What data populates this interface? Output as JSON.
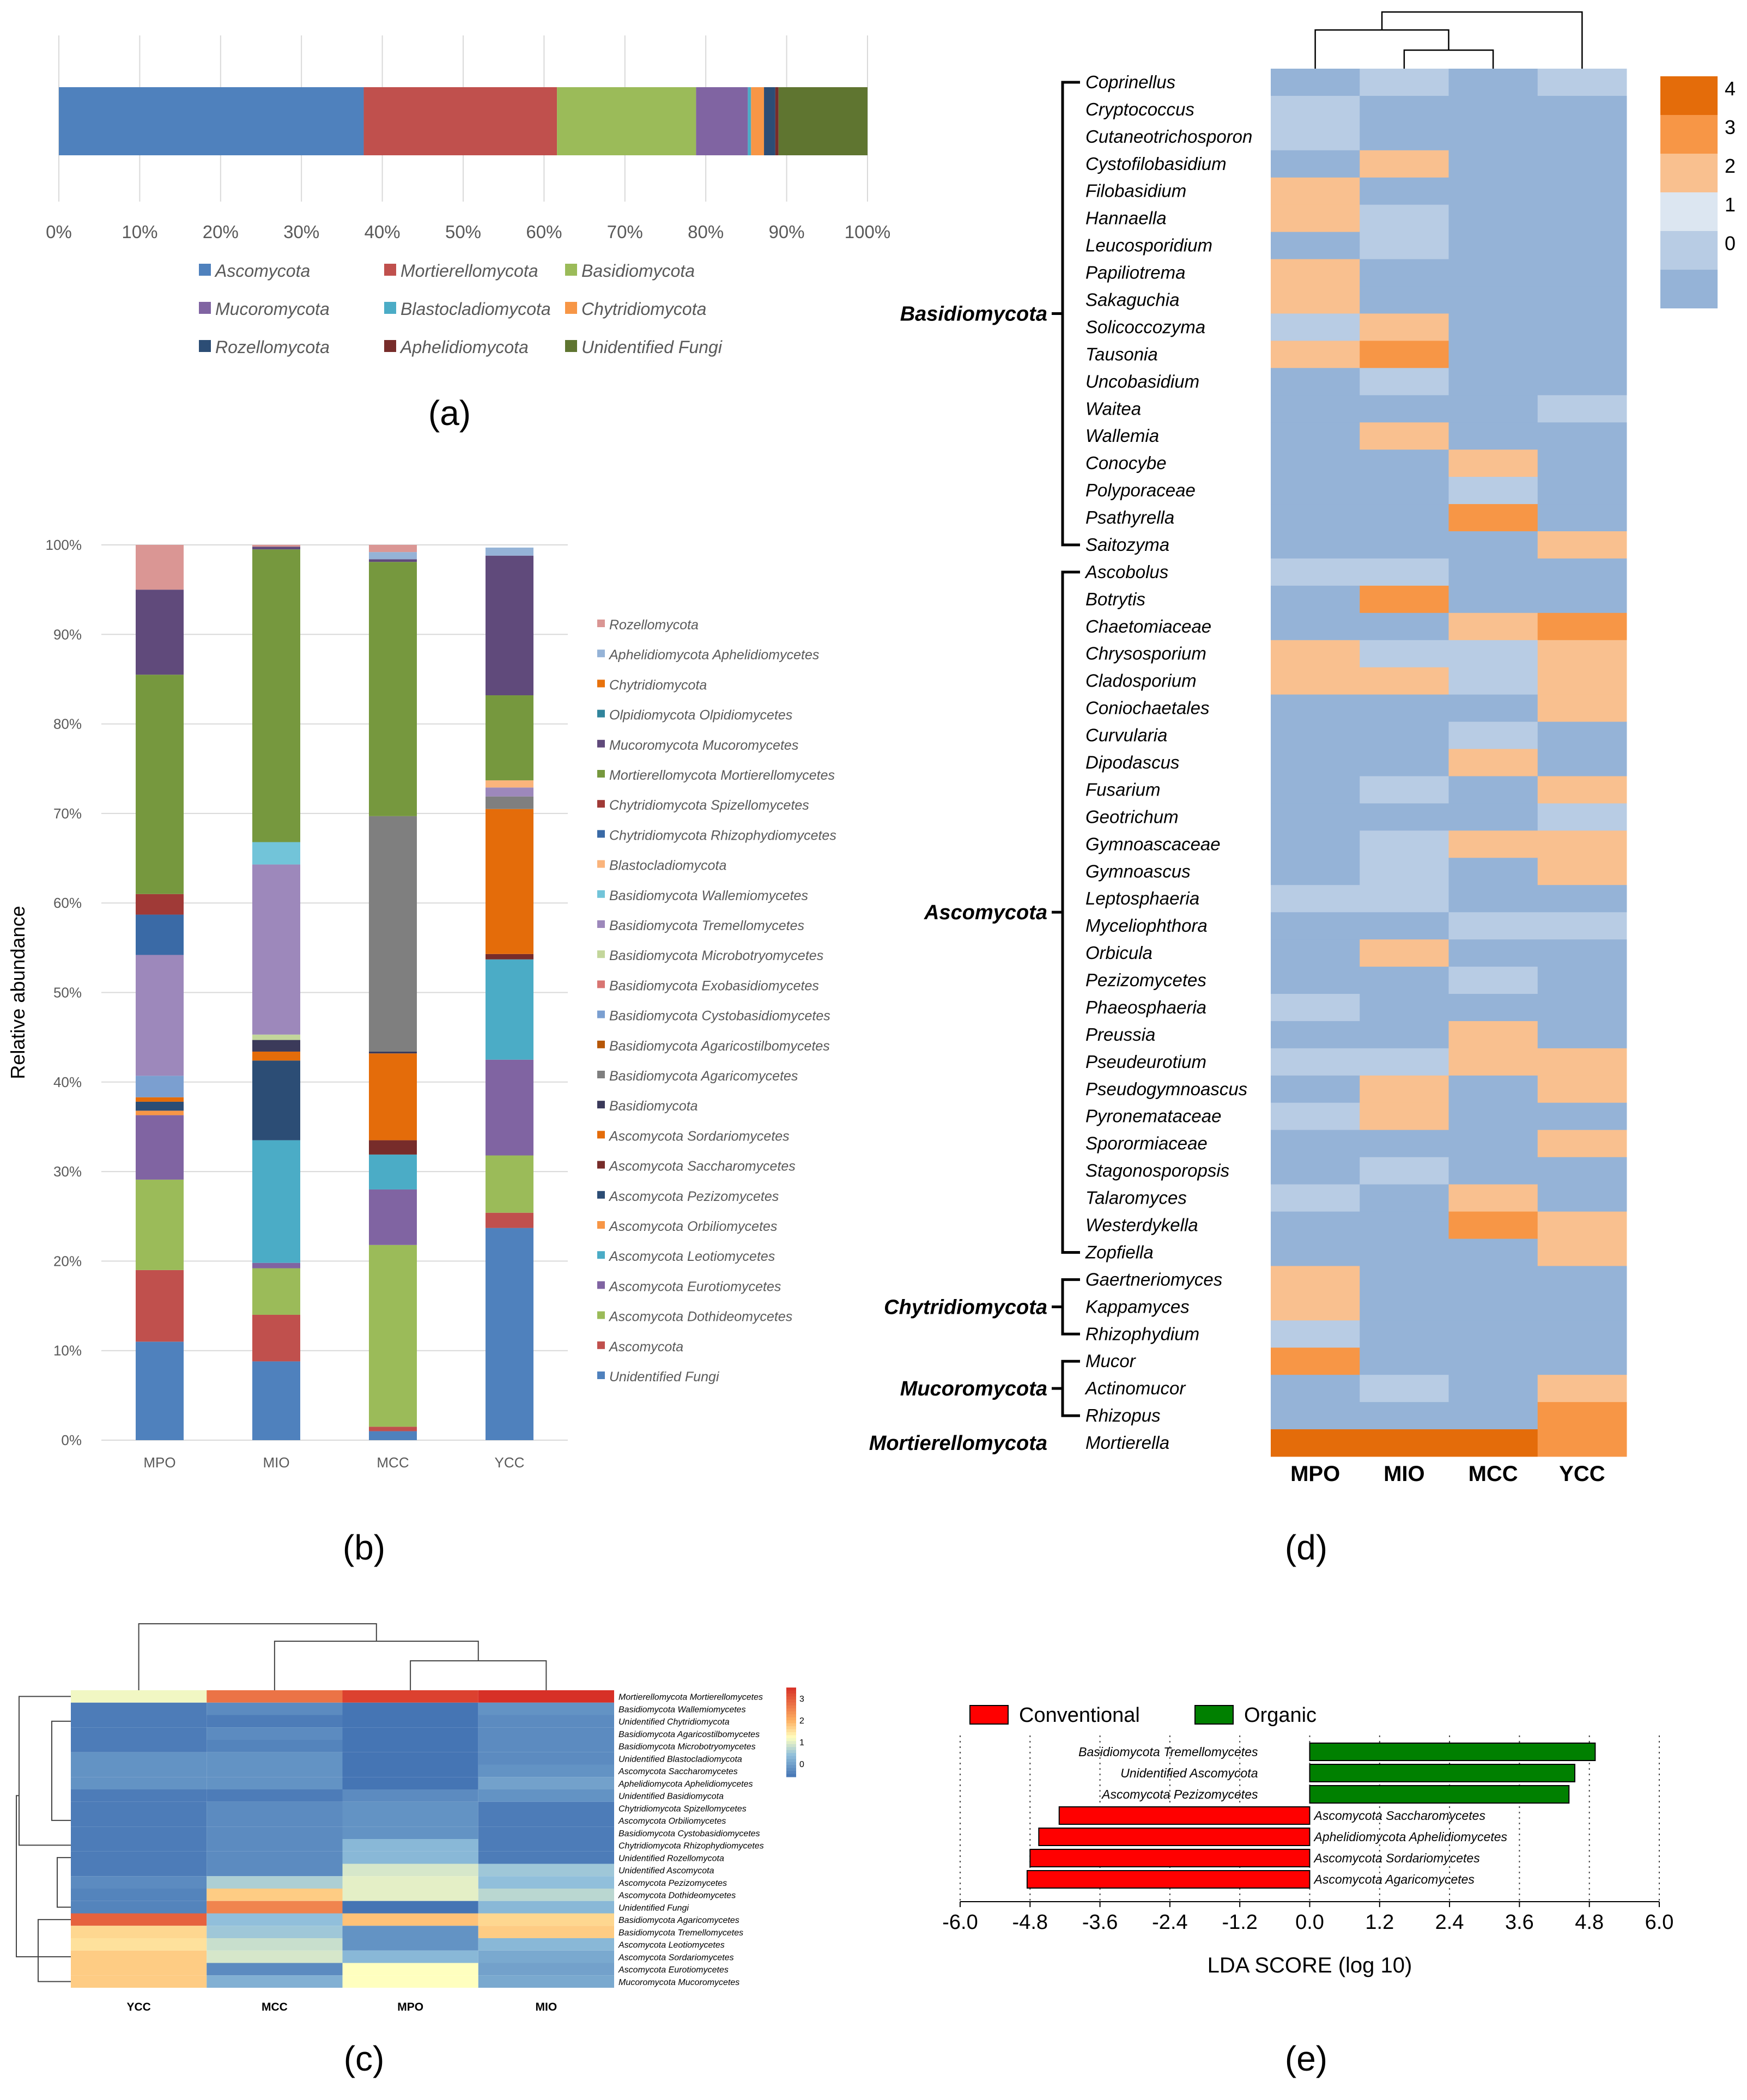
{
  "figure": {
    "panel_labels": [
      "(a)",
      "(b)",
      "(c)",
      "(d)",
      "(e)"
    ]
  },
  "chart_data": [
    {
      "panel": "(a)",
      "type": "bar",
      "orientation": "horizontal-stacked",
      "xlim": [
        0,
        100
      ],
      "x_ticks": [
        "0%",
        "10%",
        "20%",
        "30%",
        "40%",
        "50%",
        "60%",
        "70%",
        "80%",
        "90%",
        "100%"
      ],
      "grid": true,
      "legend_position": "bottom",
      "series": [
        {
          "name": "Ascomycota",
          "value": 37.7,
          "color": "#4f81bd"
        },
        {
          "name": "Mortierellomycota",
          "value": 23.9,
          "color": "#c0504d"
        },
        {
          "name": "Basidiomycota",
          "value": 17.2,
          "color": "#9bbb59"
        },
        {
          "name": "Mucoromycota",
          "value": 6.4,
          "color": "#8064a2"
        },
        {
          "name": "Blastocladiomycota",
          "value": 0.4,
          "color": "#4bacc6"
        },
        {
          "name": "Chytridiomycota",
          "value": 1.6,
          "color": "#f79646"
        },
        {
          "name": "Rozellomycota",
          "value": 1.4,
          "color": "#2c4d75"
        },
        {
          "name": "Aphelidiomycota",
          "value": 0.4,
          "color": "#772c2a"
        },
        {
          "name": "Unidentified Fungi",
          "value": 11.0,
          "color": "#5f7530"
        }
      ]
    },
    {
      "panel": "(b)",
      "type": "bar",
      "orientation": "vertical-stacked",
      "ylabel": "Relative abundance",
      "ylim": [
        0,
        100
      ],
      "y_ticks": [
        "0%",
        "10%",
        "20%",
        "30%",
        "40%",
        "50%",
        "60%",
        "70%",
        "80%",
        "90%",
        "100%"
      ],
      "categories": [
        "MPO",
        "MIO",
        "MCC",
        "YCC"
      ],
      "legend_position": "right",
      "series": [
        {
          "name": "Unidentified Fungi",
          "color": "#4f81bd",
          "values": [
            11.0,
            8.8,
            1.0,
            23.7
          ]
        },
        {
          "name": "Ascomycota",
          "color": "#c0504d",
          "values": [
            8.0,
            5.2,
            0.5,
            1.7
          ]
        },
        {
          "name": "Ascomycota Dothideomycetes",
          "color": "#9bbb59",
          "values": [
            10.1,
            5.2,
            20.3,
            6.4
          ]
        },
        {
          "name": "Ascomycota Eurotiomycetes",
          "color": "#8064a2",
          "values": [
            7.2,
            0.6,
            6.2,
            10.7
          ]
        },
        {
          "name": "Ascomycota Leotiomycetes",
          "color": "#4bacc6",
          "values": [
            0.0,
            13.7,
            3.9,
            11.2
          ]
        },
        {
          "name": "Ascomycota Orbiliomycetes",
          "color": "#f79646",
          "values": [
            0.5,
            0.0,
            0.0,
            0.0
          ]
        },
        {
          "name": "Ascomycota Pezizomycetes",
          "color": "#2c4d75",
          "values": [
            1.0,
            8.9,
            0.0,
            0.0
          ]
        },
        {
          "name": "Ascomycota Saccharomycetes",
          "color": "#772c2a",
          "values": [
            0.0,
            0.0,
            1.6,
            0.6
          ]
        },
        {
          "name": "Ascomycota Sordariomycetes",
          "color": "#e46c0a",
          "values": [
            0.5,
            1.0,
            9.7,
            16.2
          ]
        },
        {
          "name": "Basidiomycota",
          "color": "#3b3a5a",
          "values": [
            0.0,
            1.3,
            0.2,
            0.0
          ]
        },
        {
          "name": "Basidiomycota Agaricomycetes",
          "color": "#7f7f7f",
          "values": [
            0.0,
            0.0,
            26.3,
            1.4
          ]
        },
        {
          "name": "Basidiomycota Agaricostilbomycetes",
          "color": "#b65708",
          "values": [
            0.0,
            0.0,
            0.0,
            0.0
          ]
        },
        {
          "name": "Basidiomycota Cystobasidiomycetes",
          "color": "#7b9fd0",
          "values": [
            2.4,
            0.0,
            0.0,
            0.0
          ]
        },
        {
          "name": "Basidiomycota Exobasidiomycetes",
          "color": "#d87572",
          "values": [
            0.0,
            0.0,
            0.0,
            0.0
          ]
        },
        {
          "name": "Basidiomycota Microbotryomycetes",
          "color": "#c3d69b",
          "values": [
            0.0,
            0.6,
            0.0,
            0.0
          ]
        },
        {
          "name": "Basidiomycota Tremellomycetes",
          "color": "#9d88bb",
          "values": [
            13.5,
            19.0,
            0.0,
            1.0
          ]
        },
        {
          "name": "Basidiomycota Wallemiomycetes",
          "color": "#72c4d9",
          "values": [
            0.0,
            2.5,
            0.0,
            0.0
          ]
        },
        {
          "name": "Blastocladiomycota",
          "color": "#fab47c",
          "values": [
            0.0,
            0.0,
            0.0,
            0.8
          ]
        },
        {
          "name": "Chytridiomycota Rhizophydiomycetes",
          "color": "#3a6aa6",
          "values": [
            4.5,
            0.0,
            0.0,
            0.0
          ]
        },
        {
          "name": "Chytridiomycota Spizellomycetes",
          "color": "#a03a37",
          "values": [
            2.3,
            0.0,
            0.0,
            0.0
          ]
        },
        {
          "name": "Mortierellomycota Mortierellomycetes",
          "color": "#76983e",
          "values": [
            24.5,
            32.7,
            28.4,
            9.5
          ]
        },
        {
          "name": "Mucoromycota Mucoromycetes",
          "color": "#604a7b",
          "values": [
            9.5,
            0.3,
            0.3,
            15.6
          ]
        },
        {
          "name": "Olpidiomycota Olpidiomycetes",
          "color": "#31859c",
          "values": [
            0.0,
            0.0,
            0.0,
            0.0
          ]
        },
        {
          "name": "Chytridiomycota",
          "color": "#e8720c",
          "values": [
            0.0,
            0.0,
            0.0,
            0.0
          ]
        },
        {
          "name": "Aphelidiomycota Aphelidiomycetes",
          "color": "#95b3d7",
          "values": [
            0.0,
            0.0,
            0.8,
            0.9
          ]
        },
        {
          "name": "Rozellomycota",
          "color": "#da9694",
          "values": [
            5.0,
            0.2,
            0.8,
            0.0
          ]
        }
      ],
      "legend_order": [
        "Rozellomycota",
        "Aphelidiomycota Aphelidiomycetes",
        "Chytridiomycota",
        "Olpidiomycota Olpidiomycetes",
        "Mucoromycota Mucoromycetes",
        "Mortierellomycota Mortierellomycetes",
        "Chytridiomycota Spizellomycetes",
        "Chytridiomycota Rhizophydiomycetes",
        "Blastocladiomycota",
        "Basidiomycota Wallemiomycetes",
        "Basidiomycota Tremellomycetes",
        "Basidiomycota Microbotryomycetes",
        "Basidiomycota Exobasidiomycetes",
        "Basidiomycota Cystobasidiomycetes",
        "Basidiomycota Agaricostilbomycetes",
        "Basidiomycota Agaricomycetes",
        "Basidiomycota",
        "Ascomycota Sordariomycetes",
        "Ascomycota Saccharomycetes",
        "Ascomycota Pezizomycetes",
        "Ascomycota Orbiliomycetes",
        "Ascomycota Leotiomycetes",
        "Ascomycota Eurotiomycetes",
        "Ascomycota Dothideomycetes",
        "Ascomycota",
        "Unidentified Fungi"
      ]
    },
    {
      "panel": "(c)",
      "type": "heatmap",
      "columns": [
        "YCC",
        "MCC",
        "MPO",
        "MIO"
      ],
      "rows": [
        "Mortierellomycota Mortierellomycetes",
        "Basidiomycota Wallemiomycetes",
        "Unidentified Chytridiomycota",
        "Basidiomycota Agaricostilbomycetes",
        "Basidiomycota Microbotryomycetes",
        "Unidentified Blastocladiomycota",
        "Ascomycota Saccharomycetes",
        "Aphelidiomycota Aphelidiomycetes",
        "Unidentified Basidiomycota",
        "Chytridiomycota Spizellomycetes",
        "Ascomycota Orbiliomycetes",
        "Basidiomycota Cystobasidiomycetes",
        "Chytridiomycota Rhizophydiomycetes",
        "Unidentified Rozellomycota",
        "Unidentified Ascomycota",
        "Ascomycota Pezizomycetes",
        "Ascomycota Dothideomycetes",
        "Unidentified Fungi",
        "Basidiomycota Agaricomycetes",
        "Basidiomycota Tremellomycetes",
        "Ascomycota Leotiomycetes",
        "Ascomycota Sordariomycetes",
        "Ascomycota Eurotiomycetes",
        "Mucoromycota Mucoromycetes"
      ],
      "values": [
        [
          1.1,
          2.7,
          3.3,
          3.5
        ],
        [
          -0.5,
          -0.3,
          -0.6,
          -0.2
        ],
        [
          -0.5,
          -0.5,
          -0.6,
          -0.3
        ],
        [
          -0.5,
          -0.3,
          -0.6,
          -0.3
        ],
        [
          -0.5,
          -0.4,
          -0.6,
          -0.3
        ],
        [
          -0.2,
          -0.2,
          -0.6,
          -0.3
        ],
        [
          -0.2,
          -0.2,
          -0.6,
          -0.2
        ],
        [
          -0.2,
          -0.2,
          -0.6,
          0.0
        ],
        [
          -0.5,
          -0.5,
          -0.3,
          -0.2
        ],
        [
          -0.5,
          -0.3,
          -0.2,
          -0.5
        ],
        [
          -0.5,
          -0.3,
          -0.2,
          -0.5
        ],
        [
          -0.5,
          -0.3,
          -0.2,
          -0.5
        ],
        [
          -0.5,
          -0.3,
          0.3,
          -0.5
        ],
        [
          -0.5,
          -0.3,
          0.3,
          -0.5
        ],
        [
          -0.5,
          -0.3,
          0.9,
          0.5
        ],
        [
          -0.3,
          0.6,
          1.0,
          0.4
        ],
        [
          -0.4,
          1.7,
          1.0,
          0.7
        ],
        [
          -0.4,
          2.5,
          -0.6,
          0.3
        ],
        [
          2.9,
          0.4,
          1.8,
          1.6
        ],
        [
          1.6,
          0.5,
          -0.2,
          1.7
        ],
        [
          1.5,
          0.8,
          -0.2,
          0.3
        ],
        [
          1.7,
          0.9,
          0.3,
          0.1
        ],
        [
          1.7,
          -0.3,
          1.2,
          0.0
        ],
        [
          1.7,
          0.2,
          1.2,
          0.1
        ]
      ],
      "colorbar_ticks": [
        "3",
        "2",
        "1",
        "0"
      ],
      "colorbar_range": [
        -0.6,
        3.5
      ]
    },
    {
      "panel": "(d)",
      "type": "heatmap",
      "columns": [
        "MPO",
        "MIO",
        "MCC",
        "YCC"
      ],
      "groups": [
        {
          "name": "Basidiomycota",
          "start": 0,
          "end": 17
        },
        {
          "name": "Ascomycota",
          "start": 18,
          "end": 43
        },
        {
          "name": "Chytridiomycota",
          "start": 44,
          "end": 46
        },
        {
          "name": "Mucoromycota",
          "start": 47,
          "end": 49
        },
        {
          "name": "Mortierellomycota",
          "start": 50,
          "end": 50
        }
      ],
      "rows": [
        "Coprinellus",
        "Cryptococcus",
        "Cutaneotrichosporon",
        "Cystofilobasidium",
        "Filobasidium",
        "Hannaella",
        "Leucosporidium",
        "Papiliotrema",
        "Sakaguchia",
        "Solicoccozyma",
        "Tausonia",
        "Uncobasidium",
        "Waitea",
        "Wallemia",
        "Conocybe",
        "Polyporaceae",
        "Psathyrella",
        "Saitozyma",
        "Ascobolus",
        "Botrytis",
        "Chaetomiaceae",
        "Chrysosporium",
        "Cladosporium",
        "Coniochaetales",
        "Curvularia",
        "Dipodascus",
        "Fusarium",
        "Geotrichum",
        "Gymnoascaceae",
        "Gymnoascus",
        "Leptosphaeria",
        "Myceliophthora",
        "Orbicula",
        "Pezizomycetes",
        "Phaeosphaeria",
        "Preussia",
        "Pseudeurotium",
        "Pseudogymnoascus",
        "Pyronemataceae",
        "Sporormiaceae",
        "Stagonosporopsis",
        "Talaromyces",
        "Westerdykella",
        "Zopfiella",
        "Gaertneriomyces",
        "Kappamyces",
        "Rhizophydium",
        "Mucor",
        "Actinomucor",
        "Rhizopus",
        "Mortierella"
      ],
      "values": [
        [
          0,
          1,
          0,
          1
        ],
        [
          1,
          0,
          0,
          0
        ],
        [
          1,
          0,
          0,
          0
        ],
        [
          0,
          2,
          0,
          0
        ],
        [
          2,
          0,
          0,
          0
        ],
        [
          2,
          1,
          0,
          0
        ],
        [
          0,
          1,
          0,
          0
        ],
        [
          2,
          0,
          0,
          0
        ],
        [
          2,
          0,
          0,
          0
        ],
        [
          1,
          2,
          0,
          0
        ],
        [
          2,
          3,
          0,
          0
        ],
        [
          0,
          1,
          0,
          0
        ],
        [
          0,
          0,
          0,
          1
        ],
        [
          0,
          2,
          0,
          0
        ],
        [
          0,
          0,
          2,
          0
        ],
        [
          0,
          0,
          1,
          0
        ],
        [
          0,
          0,
          3,
          0
        ],
        [
          0,
          0,
          0,
          2
        ],
        [
          1,
          1,
          0,
          0
        ],
        [
          0,
          3,
          0,
          0
        ],
        [
          0,
          0,
          2,
          3
        ],
        [
          2,
          1,
          1,
          2
        ],
        [
          2,
          2,
          1,
          2
        ],
        [
          0,
          0,
          0,
          2
        ],
        [
          0,
          0,
          1,
          0
        ],
        [
          0,
          0,
          2,
          0
        ],
        [
          0,
          1,
          0,
          2
        ],
        [
          0,
          0,
          0,
          1
        ],
        [
          0,
          1,
          2,
          2
        ],
        [
          0,
          1,
          0,
          2
        ],
        [
          1,
          1,
          0,
          0
        ],
        [
          0,
          0,
          1,
          1
        ],
        [
          0,
          2,
          0,
          0
        ],
        [
          0,
          0,
          1,
          0
        ],
        [
          1,
          0,
          0,
          0
        ],
        [
          0,
          0,
          2,
          0
        ],
        [
          1,
          1,
          2,
          2
        ],
        [
          0,
          2,
          0,
          2
        ],
        [
          1,
          2,
          0,
          0
        ],
        [
          0,
          0,
          0,
          2
        ],
        [
          0,
          1,
          0,
          0
        ],
        [
          1,
          0,
          2,
          0
        ],
        [
          0,
          0,
          3,
          2
        ],
        [
          0,
          0,
          0,
          2
        ],
        [
          2,
          0,
          0,
          0
        ],
        [
          2,
          0,
          0,
          0
        ],
        [
          1,
          0,
          0,
          0
        ],
        [
          3,
          0,
          0,
          0
        ],
        [
          0,
          1,
          0,
          2
        ],
        [
          0,
          0,
          0,
          3
        ],
        [
          4,
          4,
          4,
          3
        ]
      ],
      "legend_values": [
        "4",
        "3",
        "2",
        "1",
        "0"
      ],
      "legend_colors": [
        "#e46c0a",
        "#f79646",
        "#f9c08f",
        "#dce6f1",
        "#b8cce4",
        "#95b3d7"
      ]
    },
    {
      "panel": "(e)",
      "type": "bar",
      "orientation": "horizontal",
      "xlabel": "LDA SCORE (log 10)",
      "xlim": [
        -6.0,
        6.0
      ],
      "x_ticks": [
        "-6.0",
        "-4.8",
        "-3.6",
        "-2.4",
        "-1.2",
        "0.0",
        "1.2",
        "2.4",
        "3.6",
        "4.8",
        "6.0"
      ],
      "series": [
        {
          "name": "Conventional",
          "color": "#ff0000"
        },
        {
          "name": "Organic",
          "color": "#008000"
        }
      ],
      "categories": [
        "Basidiomycota Tremellomycetes",
        "Unidentified Ascomycota",
        "Ascomycota Pezizomycetes",
        "Ascomycota Saccharomycetes",
        "Aphelidiomycota Aphelidiomycetes",
        "Ascomycota Sordariomycetes",
        "Ascomycota Agaricomycetes"
      ],
      "values": [
        4.9,
        4.55,
        4.45,
        -4.3,
        -4.65,
        -4.8,
        -4.85
      ]
    }
  ]
}
